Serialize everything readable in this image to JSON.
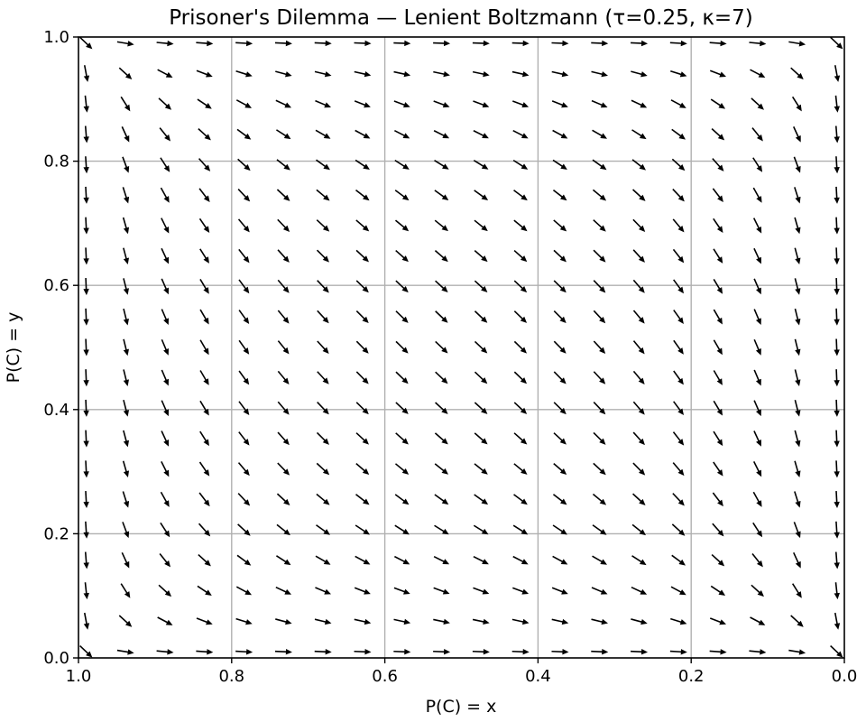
{
  "chart_data": {
    "type": "quiver",
    "title": "Prisoner's Dilemma — Lenient Boltzmann (τ=0.25, κ=7)",
    "xlabel": "P(C) = x",
    "ylabel": "P(C) = y",
    "xlim": [
      1.0,
      0.0
    ],
    "ylim": [
      0.0,
      1.0
    ],
    "x_inverted": true,
    "grid": true,
    "x_ticks": [
      "1.0",
      "0.8",
      "0.6",
      "0.4",
      "0.2",
      "0.0"
    ],
    "x_tick_values": [
      1.0,
      0.8,
      0.6,
      0.4,
      0.2,
      0.0
    ],
    "y_ticks": [
      "0.0",
      "0.2",
      "0.4",
      "0.6",
      "0.8",
      "1.0"
    ],
    "y_tick_values": [
      0.0,
      0.2,
      0.4,
      0.6,
      0.8,
      1.0
    ],
    "field": {
      "x_range": [
        0.01,
        0.99
      ],
      "y_range": [
        0.01,
        0.99
      ],
      "n_x": 20,
      "n_y": 21,
      "flow": "toward (0, 0): mutual defection"
    },
    "colors": {
      "arrow": "#000000",
      "grid": "#b0b0b0",
      "axes": "#000000"
    }
  }
}
